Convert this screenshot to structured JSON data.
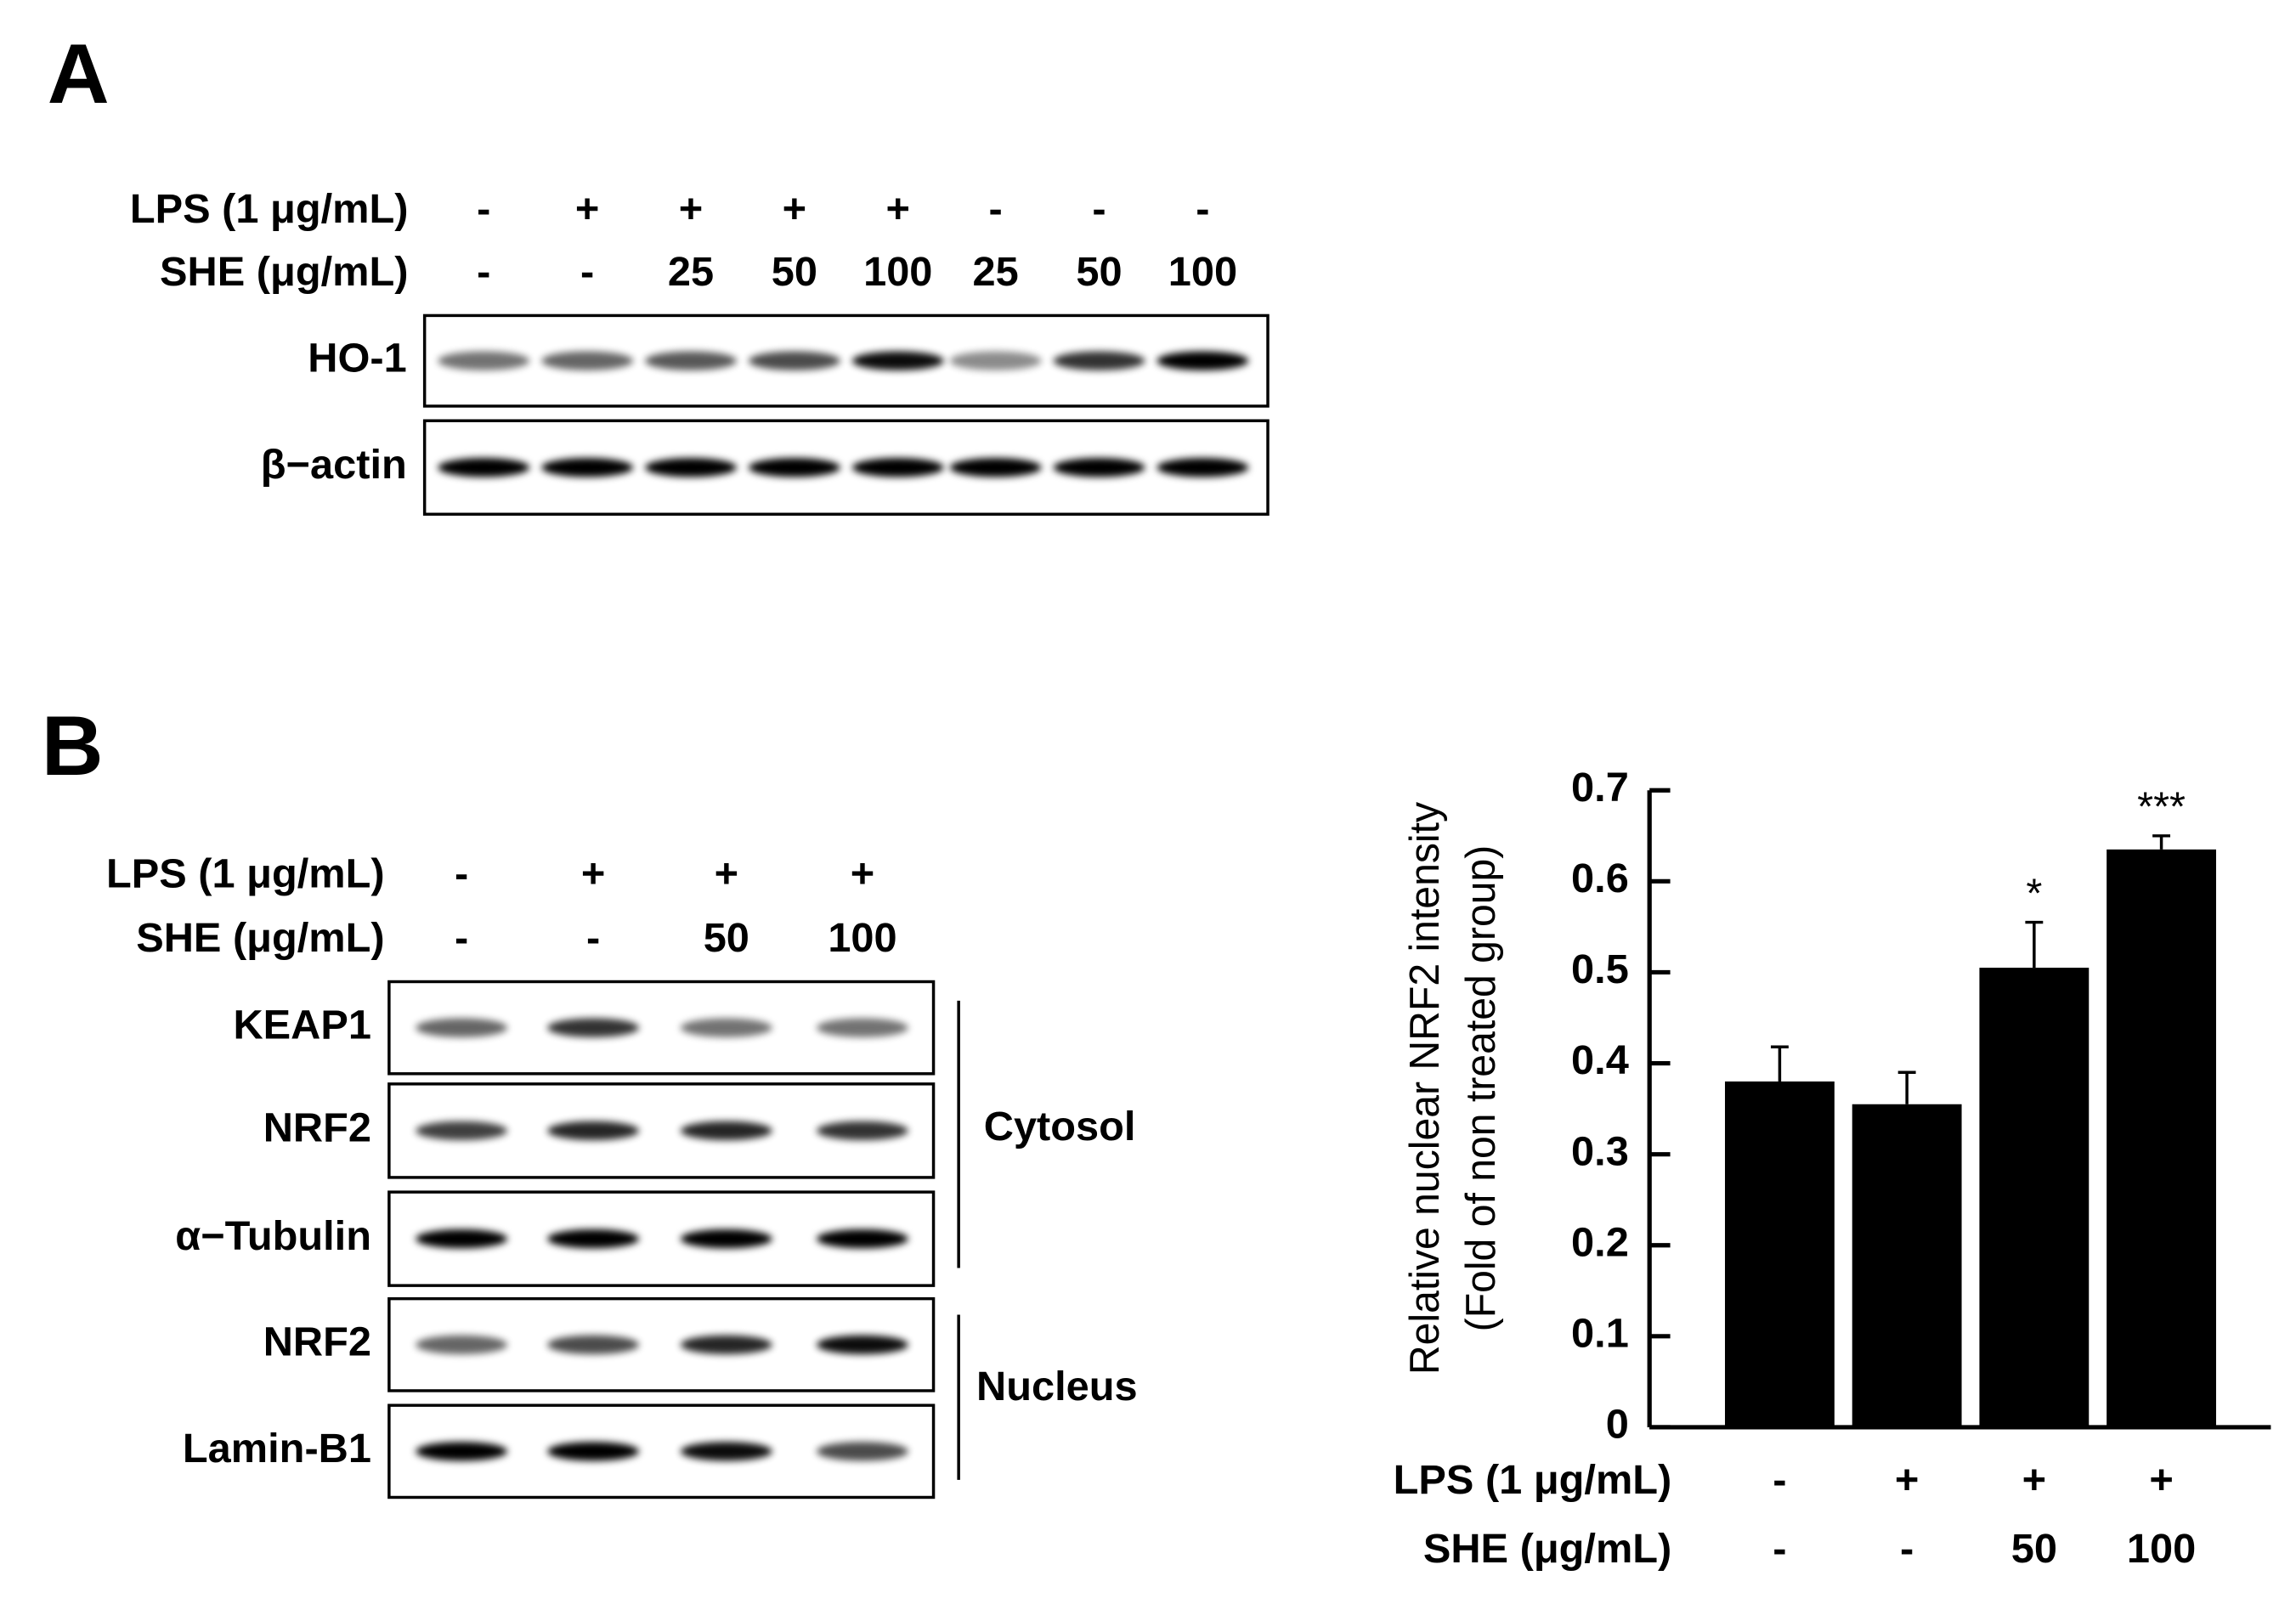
{
  "panel_a": {
    "label": "A",
    "treatments": [
      {
        "name": "LPS (1 μg/mL)",
        "lanes": [
          "-",
          "+",
          "+",
          "+",
          "+",
          "-",
          "-",
          "-"
        ]
      },
      {
        "name": "SHE (μg/mL)",
        "lanes": [
          "-",
          "-",
          "25",
          "50",
          "100",
          "25",
          "50",
          "100"
        ]
      }
    ],
    "blots": [
      "HO-1",
      "β−actin"
    ]
  },
  "panel_b": {
    "label": "B",
    "treatments": [
      {
        "name": "LPS (1 μg/mL)",
        "lanes": [
          "-",
          "+",
          "+",
          "+"
        ]
      },
      {
        "name": "SHE (μg/mL)",
        "lanes": [
          "-",
          "-",
          "50",
          "100"
        ]
      }
    ],
    "blots": [
      "KEAP1",
      "NRF2",
      "α−Tubulin",
      "NRF2",
      "Lamin-B1"
    ],
    "fractions": [
      "Cytosol",
      "Nucleus"
    ]
  },
  "chart_data": {
    "type": "bar",
    "ylabel": [
      "Relative nuclear NRF2 intensity",
      "(Fold of non treated group)"
    ],
    "treatments": [
      {
        "name": "LPS (1 μg/mL)",
        "lanes": [
          "-",
          "+",
          "+",
          "+"
        ]
      },
      {
        "name": "SHE (μg/mL)",
        "lanes": [
          "-",
          "-",
          "50",
          "100"
        ]
      }
    ],
    "values": [
      0.38,
      0.355,
      0.505,
      0.635
    ],
    "errors": [
      0.038,
      0.035,
      0.05,
      0.015
    ],
    "annotations": [
      null,
      null,
      "*",
      "***"
    ],
    "color": "#000000",
    "ylim": [
      0,
      0.7
    ],
    "yticks": [
      0,
      0.1,
      0.2,
      0.3,
      0.4,
      0.5,
      0.6,
      0.7
    ]
  }
}
